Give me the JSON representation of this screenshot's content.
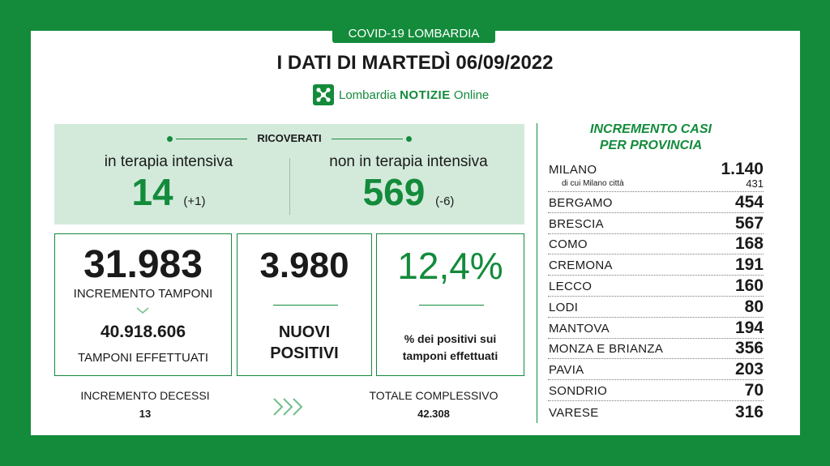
{
  "tag": "COVID-19 LOMBARDIA",
  "title": "I DATI DI MARTEDÌ 06/09/2022",
  "brand": {
    "name": "Lombardia",
    "bold": "NOTIZIE",
    "suffix": "Online",
    "icon": "cross-logo-icon"
  },
  "ricoverati": {
    "label": "RICOVERATI",
    "intensiva": {
      "label": "in terapia intensiva",
      "value": "14",
      "delta": "(+1)"
    },
    "non_intensiva": {
      "label": "non in terapia intensiva",
      "value": "569",
      "delta": "(-6)"
    }
  },
  "tamponi": {
    "value": "31.983",
    "label": "INCREMENTO TAMPONI",
    "total": "40.918.606",
    "total_label": "TAMPONI EFFETTUATI"
  },
  "positivi": {
    "value": "3.980",
    "label_1": "NUOVI",
    "label_2": "POSITIVI"
  },
  "percentuale": {
    "value": "12,4%",
    "label_1": "% dei positivi sui",
    "label_2": "tamponi effettuati"
  },
  "decessi": {
    "label": "INCREMENTO DECESSI",
    "value": "13"
  },
  "totale": {
    "label": "TOTALE COMPLESSIVO",
    "value": "42.308"
  },
  "province": {
    "title_1": "INCREMENTO CASI",
    "title_2": "PER PROVINCIA",
    "milano": {
      "name": "MILANO",
      "value": "1.140",
      "sub_label": "di cui Milano città",
      "sub_value": "431"
    },
    "items": [
      {
        "name": "BERGAMO",
        "value": "454"
      },
      {
        "name": "BRESCIA",
        "value": "567"
      },
      {
        "name": "COMO",
        "value": "168"
      },
      {
        "name": "CREMONA",
        "value": "191"
      },
      {
        "name": "LECCO",
        "value": "160"
      },
      {
        "name": "LODI",
        "value": "80"
      },
      {
        "name": "MANTOVA",
        "value": "194"
      },
      {
        "name": "MONZA E BRIANZA",
        "value": "356"
      },
      {
        "name": "PAVIA",
        "value": "203"
      },
      {
        "name": "SONDRIO",
        "value": "70"
      },
      {
        "name": "VARESE",
        "value": "316"
      }
    ]
  },
  "colors": {
    "green": "#138b3b",
    "light_green": "#d3eadb"
  }
}
